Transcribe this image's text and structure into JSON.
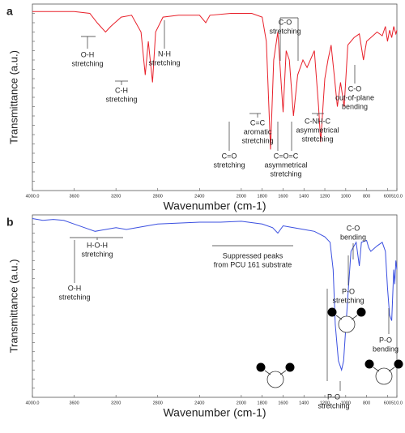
{
  "chart_data": [
    {
      "type": "line",
      "panel_label": "a",
      "xlabel": "Wavenumber (cm-1)",
      "ylabel": "Transmittance (a.u.)",
      "color": "#e8202a",
      "xlim": [
        4000,
        510
      ],
      "ylim": [
        0,
        100
      ],
      "xticks": [
        {
          "value": 4000,
          "label": "4000.0"
        },
        3600,
        3200,
        2800,
        2400,
        2000,
        1800,
        1600,
        1400,
        1200,
        1000,
        800,
        600,
        {
          "value": 510,
          "label": "510.0"
        }
      ],
      "x": [
        4000,
        3800,
        3600,
        3450,
        3380,
        3300,
        3250,
        3150,
        3050,
        2960,
        2920,
        2890,
        2850,
        2820,
        2750,
        2600,
        2400,
        2340,
        2300,
        2100,
        1900,
        1800,
        1760,
        1720,
        1690,
        1650,
        1600,
        1570,
        1540,
        1500,
        1460,
        1410,
        1370,
        1300,
        1260,
        1240,
        1200,
        1170,
        1140,
        1110,
        1080,
        1050,
        1015,
        980,
        920,
        870,
        830,
        800,
        760,
        700,
        650,
        620,
        600,
        580,
        560,
        540,
        520,
        510
      ],
      "values": [
        96,
        96,
        96,
        95,
        90,
        85,
        88,
        93,
        94,
        85,
        62,
        80,
        58,
        85,
        93,
        94,
        94,
        90,
        94,
        95,
        95,
        93,
        80,
        22,
        70,
        85,
        42,
        75,
        70,
        40,
        62,
        70,
        66,
        75,
        45,
        26,
        60,
        70,
        78,
        62,
        45,
        58,
        45,
        78,
        82,
        84,
        70,
        80,
        82,
        85,
        83,
        88,
        80,
        86,
        82,
        88,
        84,
        86
      ],
      "annotations": [
        [
          "O-H",
          "stretching"
        ],
        [
          "C-H",
          "stretching"
        ],
        [
          "N-H",
          "stretching"
        ],
        [
          "C=O",
          "stretching"
        ],
        [
          "C=C",
          "aromatic",
          "stretching"
        ],
        [
          "C-O",
          "stretching"
        ],
        [
          "C=O=C",
          "asymmetrical",
          "stretching"
        ],
        [
          "C-NH-C",
          "asymmetrical",
          "stretching"
        ],
        [
          "C-O",
          "out-of-plane",
          "bending"
        ]
      ]
    },
    {
      "type": "line",
      "panel_label": "b",
      "xlabel": "Wavenumber (cm-1)",
      "ylabel": "Transmittance (a.u.)",
      "color": "#3a4fe0",
      "xlim": [
        4000,
        510
      ],
      "ylim": [
        0,
        100
      ],
      "xticks": [
        {
          "value": 4000,
          "label": "4000.0"
        },
        3600,
        3200,
        2800,
        2400,
        2000,
        1800,
        1600,
        1400,
        1200,
        1000,
        800,
        600,
        {
          "value": 510,
          "label": "510.0"
        }
      ],
      "x": [
        4000,
        3900,
        3800,
        3700,
        3600,
        3500,
        3400,
        3300,
        3200,
        3100,
        3000,
        2900,
        2800,
        2600,
        2400,
        2200,
        2000,
        1800,
        1700,
        1650,
        1600,
        1500,
        1400,
        1300,
        1200,
        1150,
        1120,
        1100,
        1070,
        1040,
        1020,
        980,
        950,
        900,
        870,
        850,
        800,
        780,
        760,
        700,
        650,
        620,
        600,
        580,
        560,
        540,
        530,
        520,
        510
      ],
      "values": [
        98,
        97,
        97.5,
        97,
        95,
        93,
        91,
        92,
        93,
        92,
        93,
        94,
        95,
        95.5,
        96,
        96,
        96.5,
        95,
        93,
        90,
        94,
        93,
        92,
        91,
        88,
        85,
        70,
        40,
        20,
        15,
        20,
        55,
        80,
        85,
        72,
        85,
        86,
        82,
        80,
        83,
        85,
        80,
        60,
        45,
        42,
        70,
        62,
        75,
        70
      ],
      "annotations": [
        [
          "H-O-H",
          "stretching"
        ],
        [
          "O-H",
          "stretching"
        ],
        [
          "Suppressed peaks",
          "from PCU 161 substrate"
        ],
        [
          "C-O",
          "bending"
        ],
        [
          "P-O",
          "stretching"
        ],
        [
          "P-O",
          "stretching"
        ],
        [
          "P-O",
          "bending"
        ]
      ]
    }
  ]
}
